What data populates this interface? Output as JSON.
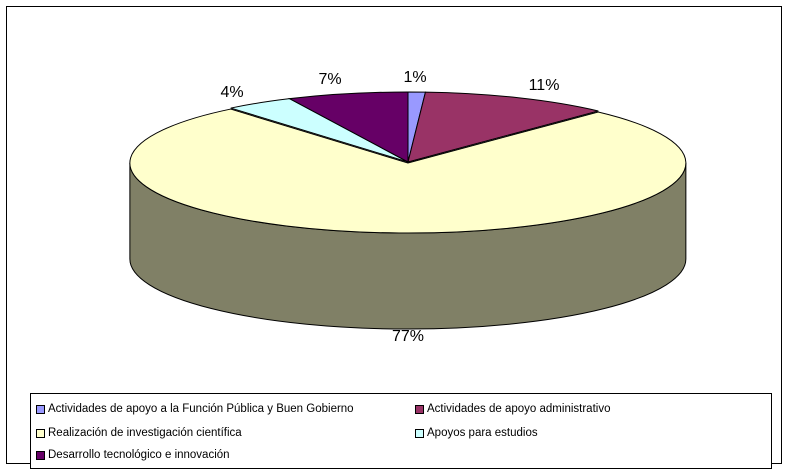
{
  "chart_data": {
    "type": "pie",
    "style": "3d-exploded-perspective",
    "slices": [
      {
        "label": "Actividades de apoyo a la Función Pública y Buen Gobierno",
        "value": 1,
        "pct_label": "1%",
        "color": "#9999ff",
        "side_color": "#6b6bb3"
      },
      {
        "label": "Actividades de apoyo administrativo",
        "value": 11,
        "pct_label": "11%",
        "color": "#993366",
        "side_color": "#6b2447"
      },
      {
        "label": "Realización de investigación científica",
        "value": 77,
        "pct_label": "77%",
        "color": "#ffffcc",
        "side_color": "#808066"
      },
      {
        "label": "Apoyos para estudios",
        "value": 4,
        "pct_label": "4%",
        "color": "#ccffff",
        "side_color": "#8fb3b3"
      },
      {
        "label": "Desarrollo tecnológico e innovación",
        "value": 7,
        "pct_label": "7%",
        "color": "#660066",
        "side_color": "#470047"
      }
    ],
    "legend_position": "bottom"
  }
}
